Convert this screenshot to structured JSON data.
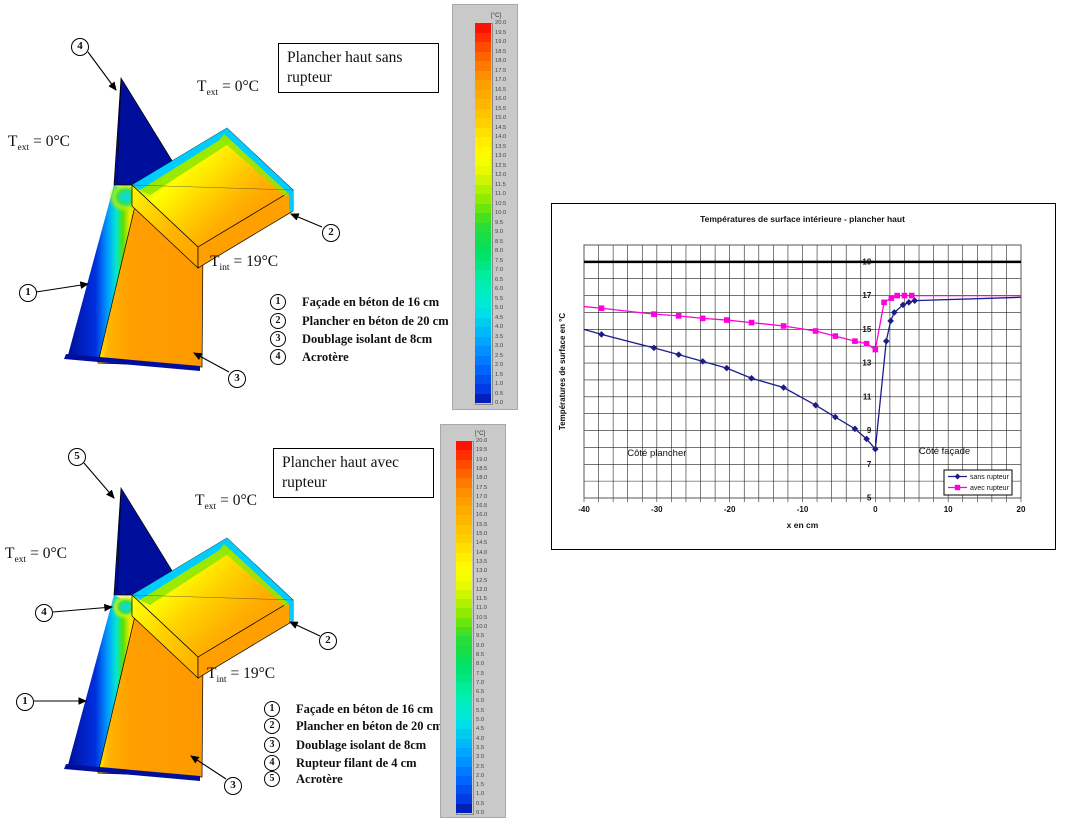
{
  "figure_panels": [
    {
      "title": "Plancher haut sans rupteur",
      "t_ext": {
        "pre": "T",
        "sub": "ext",
        "post": " = 0°C"
      },
      "t_int": {
        "pre": "T",
        "sub": "int",
        "post": " = 19°C"
      },
      "legend": [
        {
          "num": "1",
          "label": "Façade en béton de 16 cm"
        },
        {
          "num": "2",
          "label": "Plancher en béton de 20 cm"
        },
        {
          "num": "3",
          "label": "Doublage isolant de 8cm"
        },
        {
          "num": "4",
          "label": "Acrotère"
        }
      ],
      "callouts": [
        {
          "num": "1"
        },
        {
          "num": "2"
        },
        {
          "num": "3"
        },
        {
          "num": "4"
        }
      ]
    },
    {
      "title": "Plancher haut avec rupteur",
      "t_ext": {
        "pre": "T",
        "sub": "ext",
        "post": " = 0°C"
      },
      "t_int": {
        "pre": "T",
        "sub": "int",
        "post": " = 19°C"
      },
      "legend": [
        {
          "num": "1",
          "label": "Façade en béton de 16 cm"
        },
        {
          "num": "2",
          "label": "Plancher en béton de 20 cm"
        },
        {
          "num": "3",
          "label": "Doublage isolant de 8cm"
        },
        {
          "num": "4",
          "label": "Rupteur filant de 4 cm"
        },
        {
          "num": "5",
          "label": "Acrotère"
        }
      ],
      "callouts": [
        {
          "num": "1"
        },
        {
          "num": "2"
        },
        {
          "num": "3"
        },
        {
          "num": "4"
        },
        {
          "num": "5"
        }
      ]
    }
  ],
  "temperature_scale": {
    "unit": "[°C]",
    "tick_labels": [
      "20.0",
      "19.5",
      "19.0",
      "18.5",
      "18.0",
      "17.5",
      "17.0",
      "16.5",
      "16.0",
      "15.5",
      "15.0",
      "14.5",
      "14.0",
      "13.5",
      "13.0",
      "12.5",
      "12.0",
      "11.5",
      "11.0",
      "10.5",
      "10.0",
      "9.5",
      "9.0",
      "8.5",
      "8.0",
      "7.5",
      "7.0",
      "6.5",
      "6.0",
      "5.5",
      "5.0",
      "4.5",
      "4.0",
      "3.5",
      "3.0",
      "2.5",
      "2.0",
      "1.5",
      "1.0",
      "0.5",
      "0.0"
    ]
  },
  "chart_data": {
    "type": "line",
    "title": "Températures de surface intérieure - plancher haut",
    "xlabel": "x en cm",
    "ylabel": "Températures de surface en °C",
    "xlim": [
      -40,
      20
    ],
    "ylim": [
      5,
      20
    ],
    "x_grid_step": 2,
    "y_grid_step": 1,
    "grid": true,
    "x_tick_labels": [
      "-40",
      "-30",
      "-20",
      "-10",
      "0",
      "10",
      "20"
    ],
    "y_tick_labels": [
      "19",
      "17",
      "15",
      "13",
      "11",
      "9",
      "7",
      "5"
    ],
    "reference_line": {
      "y": 19,
      "color": "#000000"
    },
    "annotations": [
      {
        "text": "Côté plancher",
        "x": -30,
        "y": 7.5
      },
      {
        "text": "Côté façade",
        "x": 9.5,
        "y": 7.6
      }
    ],
    "legend_position": "bottom-right",
    "series": [
      {
        "name": "sans rupteur",
        "color": "#1c1c8a",
        "marker": "diamond",
        "points": [
          [
            -40,
            15.0
          ],
          [
            -37.6,
            14.7
          ],
          [
            -30.4,
            13.9
          ],
          [
            -27,
            13.5
          ],
          [
            -23.7,
            13.1
          ],
          [
            -20.4,
            12.7
          ],
          [
            -17,
            12.1
          ],
          [
            -12.6,
            11.55
          ],
          [
            -8.2,
            10.5
          ],
          [
            -5.5,
            9.8
          ],
          [
            -2.8,
            9.1
          ],
          [
            -1.2,
            8.5
          ],
          [
            0,
            7.9
          ],
          [
            1.5,
            14.3
          ],
          [
            2.1,
            15.5
          ],
          [
            2.6,
            16.0
          ],
          [
            3.8,
            16.45
          ],
          [
            4.6,
            16.6
          ],
          [
            5.4,
            16.7
          ],
          [
            20,
            16.9
          ]
        ]
      },
      {
        "name": "avec rupteur",
        "color": "#ff00dd",
        "marker": "square",
        "points": [
          [
            -40,
            16.35
          ],
          [
            -37.6,
            16.25
          ],
          [
            -30.4,
            15.9
          ],
          [
            -27,
            15.8
          ],
          [
            -23.7,
            15.65
          ],
          [
            -20.4,
            15.55
          ],
          [
            -17,
            15.4
          ],
          [
            -12.6,
            15.2
          ],
          [
            -8.2,
            14.9
          ],
          [
            -5.5,
            14.6
          ],
          [
            -2.8,
            14.3
          ],
          [
            -1.2,
            14.15
          ],
          [
            0,
            13.8
          ],
          [
            1.2,
            16.6
          ],
          [
            2.2,
            16.85
          ],
          [
            3,
            17.0
          ],
          [
            4,
            17.0
          ],
          [
            5,
            17.0
          ],
          [
            20,
            17.0
          ]
        ]
      }
    ]
  }
}
